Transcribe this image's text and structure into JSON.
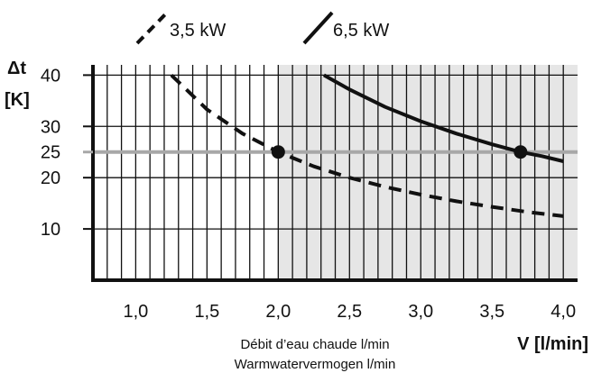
{
  "chart_data": {
    "type": "line",
    "xlabel": "V [l/min]",
    "ylabel_lines": [
      "Δt",
      "[K]"
    ],
    "x_caption_lines": [
      "Débit d’eau chaude l/min",
      "Warmwatervermogen l/min"
    ],
    "xlim": [
      0.7,
      4.1
    ],
    "ylim": [
      0,
      42
    ],
    "x_ticks": [
      1.0,
      1.5,
      2.0,
      2.5,
      3.0,
      3.5,
      4.0
    ],
    "x_tick_labels": [
      "1,0",
      "1,5",
      "2,0",
      "2,5",
      "3,0",
      "3,5",
      "4,0"
    ],
    "y_ticks": [
      10,
      20,
      25,
      30,
      40
    ],
    "y_tick_labels": [
      "10",
      "20",
      "25",
      "30",
      "40"
    ],
    "grid": true,
    "legend_position": "top",
    "shaded_x_range": [
      2.0,
      4.1
    ],
    "reference_line": {
      "y": 25,
      "label": "25",
      "color": "#a8a8a8"
    },
    "series": [
      {
        "name": "3,5 kW",
        "style": "dashed",
        "x": [
          1.25,
          1.5,
          1.75,
          2.0,
          2.25,
          2.5,
          2.75,
          3.0,
          3.25,
          3.5,
          3.75,
          4.0
        ],
        "y": [
          40.0,
          33.3,
          28.6,
          25.0,
          22.2,
          20.0,
          18.2,
          16.7,
          15.4,
          14.3,
          13.3,
          12.5
        ],
        "marker": {
          "x": 2.0,
          "y": 25
        }
      },
      {
        "name": "6,5 kW",
        "style": "solid",
        "x": [
          2.32,
          2.5,
          2.75,
          3.0,
          3.25,
          3.5,
          3.7,
          3.85,
          4.0
        ],
        "y": [
          40.0,
          37.2,
          33.8,
          31.0,
          28.6,
          26.5,
          25.0,
          24.2,
          23.2
        ],
        "marker": {
          "x": 3.7,
          "y": 25
        }
      }
    ]
  },
  "colors": {
    "text": "#111111",
    "shade": "#e6e6e6",
    "reference": "#a8a8a8",
    "line": "#111111"
  }
}
